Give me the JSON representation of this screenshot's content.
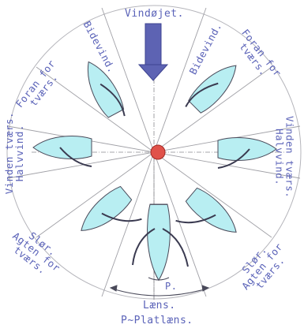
{
  "labels": {
    "wind_eye": "Vindøjet.",
    "close_hauled_left": "Bidevind.",
    "close_hauled_right": "Bidevind.",
    "close_reach_left": [
      "Foran for",
      "tværs."
    ],
    "close_reach_right": [
      "Foran for",
      "tværs."
    ],
    "beam_reach_left": [
      "Vinden tværs.",
      "Halvvind."
    ],
    "beam_reach_right": [
      "Vinden tværs.",
      "Halvvind."
    ],
    "broad_reach_left": [
      "Slør.",
      "Agten for",
      "tværs."
    ],
    "broad_reach_right": [
      "Slør.",
      "Agten for",
      "tværs."
    ],
    "center_p": "P.",
    "running": "Læns.",
    "dead_run": "P~Platlæns."
  },
  "colors": {
    "text": "#5a62b8",
    "arrow": "#5d63b3",
    "hull_fill": "#b8eef2",
    "hull_stroke": "#4a4a5a",
    "sail": "#3a3a50",
    "center_dot": "#e0524a",
    "lines": "#9a9aa0"
  }
}
